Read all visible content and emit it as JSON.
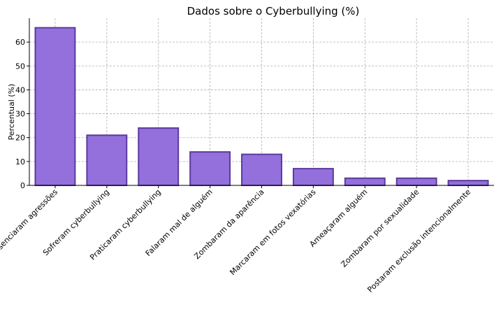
{
  "chart_data": {
    "type": "bar",
    "title": "Dados sobre o Cyberbullying (%)",
    "xlabel": "",
    "ylabel": "Percentual (%)",
    "ylim": [
      0,
      70
    ],
    "yticks": [
      0,
      10,
      20,
      30,
      40,
      50,
      60
    ],
    "grid": true,
    "categories": [
      "Presenciaram agressões",
      "Sofreram cyberbullying",
      "Praticaram cyberbullying",
      "Falaram mal de alguém",
      "Zombaram da aparência",
      "Marcaram em fotos vexatórias",
      "Ameaçaram alguém",
      "Zombaram por sexualidade",
      "Postaram exclusão intencionalmente"
    ],
    "values": [
      66,
      21,
      24,
      14,
      13,
      7,
      3,
      3,
      2
    ],
    "bar_color": "#9370DB",
    "bar_edge_color": "#5b3a9e"
  }
}
